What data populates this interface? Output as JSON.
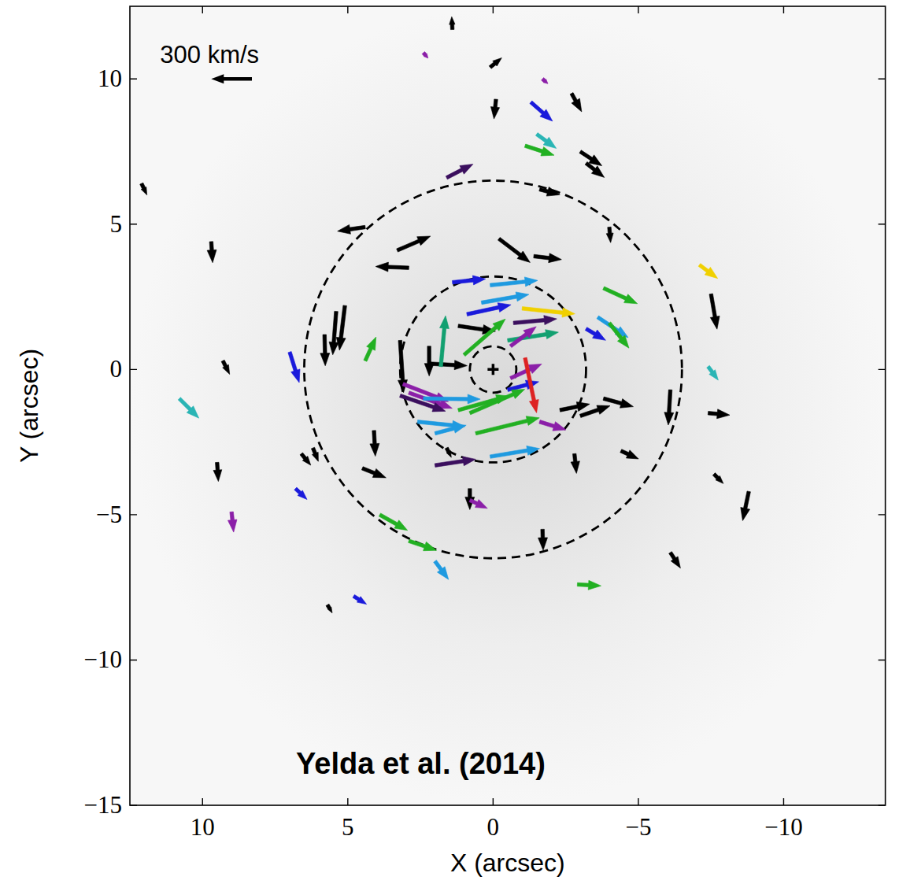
{
  "chart_data": {
    "type": "quiver",
    "annotation": "Yelda et al. (2014)",
    "x_label": "X (arcsec)",
    "y_label": "Y (arcsec)",
    "xlim": [
      12.5,
      -13.5
    ],
    "ylim": [
      -15,
      12.5
    ],
    "xticks": [
      10,
      5,
      0,
      {
        "value": -5,
        "label": "−5"
      },
      {
        "value": -10,
        "label": "−10"
      }
    ],
    "yticks": [
      {
        "value": -15,
        "label": "−15"
      },
      {
        "value": -10,
        "label": "−10"
      },
      {
        "value": -5,
        "label": "−5"
      },
      0,
      5,
      10
    ],
    "reference_arrow": {
      "value": 300,
      "label": "300 km/s",
      "x": 8.3,
      "y": 10.0
    },
    "circle_radii": [
      0.8,
      3.2,
      6.5
    ],
    "center": [
      0,
      0
    ],
    "x": [
      1.4,
      2.4,
      0.1,
      -1.7,
      -1.3,
      -2.7,
      -0.1,
      -1.5,
      -1.1,
      -3.0,
      -3.2,
      1.6,
      12.1,
      9.7,
      4.4,
      3.3,
      -0.2,
      -1.4,
      -4.0,
      2.9,
      1.4,
      0.1,
      0.4,
      0.9,
      -1.0,
      -3.8,
      1.2,
      -0.7,
      -3.6,
      -4.0,
      -3.2,
      1.0,
      -0.5,
      -0.6,
      1.8,
      2.2,
      3.2,
      4.4,
      7.0,
      5.1,
      5.4,
      5.8,
      9.3,
      10.8,
      9.5,
      6.8,
      9.0,
      6.2,
      4.5,
      4.1,
      3.1,
      2.9,
      3.2,
      2.4,
      -0.5,
      -0.6,
      -1.1,
      0.8,
      1.2,
      2.6,
      2.0,
      2.0,
      0.1,
      0.6,
      -1.6,
      2.2,
      -2.3,
      -3.0,
      -3.8,
      -6.1,
      -7.4,
      -7.6,
      -8.8,
      -7.5,
      -7.1,
      -7.4,
      0.8,
      0.8,
      3.9,
      2.9,
      2.0,
      -1.7,
      -6.1,
      -2.9,
      4.8,
      5.7,
      -1.6,
      -2.8,
      -4.4,
      6.6,
      1.6
    ],
    "y": [
      11.7,
      10.9,
      10.4,
      10.0,
      9.2,
      9.5,
      9.3,
      8.1,
      7.7,
      7.5,
      7.1,
      6.6,
      6.4,
      4.4,
      4.9,
      4.1,
      4.5,
      3.9,
      4.9,
      3.5,
      3.0,
      2.9,
      2.3,
      1.9,
      2.1,
      2.8,
      1.5,
      1.6,
      1.8,
      1.6,
      1.4,
      0.5,
      1.0,
      0.8,
      0.1,
      0.8,
      1.0,
      0.3,
      0.6,
      2.2,
      2.0,
      1.2,
      0.3,
      -1.0,
      -3.2,
      -4.1,
      -4.9,
      -2.7,
      -3.4,
      -2.1,
      -0.5,
      -0.8,
      -0.9,
      -1.0,
      -0.7,
      -0.3,
      0.4,
      -1.5,
      -1.4,
      -1.8,
      -2.2,
      -3.3,
      -3.0,
      -2.2,
      -1.8,
      0.2,
      -1.4,
      -1.6,
      -1.0,
      -0.7,
      -1.5,
      -3.6,
      -4.2,
      2.6,
      3.6,
      0.1,
      -4.1,
      -4.5,
      -5.0,
      -5.9,
      -6.6,
      -5.5,
      -6.3,
      -7.4,
      -7.8,
      -8.1,
      6.2,
      -2.9,
      -2.8,
      -2.9,
      -2.7
    ],
    "vx": [
      5,
      -35,
      -85,
      -40,
      -160,
      -75,
      15,
      -145,
      -215,
      -160,
      -135,
      -195,
      -40,
      -10,
      205,
      -245,
      -230,
      -205,
      -10,
      245,
      -245,
      -350,
      -350,
      -325,
      -390,
      -250,
      -275,
      -320,
      -225,
      -145,
      -145,
      -305,
      -375,
      -190,
      -35,
      0,
      -25,
      -80,
      -70,
      40,
      25,
      -5,
      -50,
      -145,
      -10,
      -85,
      -15,
      -40,
      -175,
      -10,
      -335,
      -320,
      -335,
      -420,
      -230,
      -230,
      -85,
      -405,
      -375,
      -350,
      -230,
      -300,
      -365,
      -470,
      -195,
      -280,
      -220,
      -220,
      -220,
      15,
      -160,
      -70,
      45,
      -45,
      -135,
      -75,
      0,
      -130,
      -205,
      -205,
      -100,
      -5,
      -75,
      -175,
      -95,
      -35,
      -150,
      -15,
      -130,
      -70,
      -35
    ],
    "vy": [
      95,
      -40,
      70,
      -35,
      -140,
      -135,
      -145,
      -105,
      -70,
      -105,
      -105,
      100,
      -85,
      -155,
      -30,
      105,
      -175,
      -25,
      -115,
      10,
      25,
      35,
      60,
      70,
      -40,
      -115,
      -40,
      30,
      -150,
      -185,
      -85,
      265,
      60,
      145,
      375,
      -220,
      -385,
      175,
      -225,
      -330,
      -320,
      -230,
      -100,
      -145,
      -140,
      -80,
      -150,
      -100,
      -70,
      -190,
      -130,
      -115,
      -115,
      -5,
      60,
      105,
      -405,
      175,
      105,
      -35,
      60,
      45,
      60,
      115,
      -60,
      -15,
      45,
      75,
      -60,
      -260,
      -15,
      -70,
      -215,
      -260,
      -100,
      -100,
      -155,
      -60,
      -115,
      -70,
      -135,
      -155,
      -115,
      -10,
      -60,
      -60,
      -40,
      -145,
      -60,
      -85,
      -70
    ],
    "colors": [
      "#000000",
      "#8b1fa8",
      "#000000",
      "#8b1fa8",
      "#1a1adb",
      "#000000",
      "#000000",
      "#2ab5b5",
      "#22b022",
      "#000000",
      "#000000",
      "#3b0f5e",
      "#000000",
      "#000000",
      "#000000",
      "#000000",
      "#000000",
      "#000000",
      "#000000",
      "#000000",
      "#1a1adb",
      "#1f9ae0",
      "#1f9ae0",
      "#1a1adb",
      "#f0d000",
      "#22b022",
      "#000000",
      "#3b0f5e",
      "#1f9ae0",
      "#22b022",
      "#1a1adb",
      "#22b022",
      "#12a070",
      "#8b1fa8",
      "#12a070",
      "#000000",
      "#000000",
      "#22b022",
      "#1a1adb",
      "#000000",
      "#000000",
      "#000000",
      "#000000",
      "#2ab5b5",
      "#000000",
      "#1a1adb",
      "#8b1fa8",
      "#000000",
      "#000000",
      "#000000",
      "#8b1fa8",
      "#8b1fa8",
      "#3b0f5e",
      "#1f9ae0",
      "#1a1adb",
      "#8b1fa8",
      "#dd2222",
      "#22b022",
      "#22b022",
      "#1f9ae0",
      "#1f9ae0",
      "#3b0f5e",
      "#1f9ae0",
      "#22b022",
      "#8b1fa8",
      "#000000",
      "#000000",
      "#000000",
      "#000000",
      "#000000",
      "#000000",
      "#000000",
      "#000000",
      "#000000",
      "#f0d000",
      "#2ab5b5",
      "#000000",
      "#8b1fa8",
      "#22b022",
      "#22b022",
      "#1f9ae0",
      "#000000",
      "#000000",
      "#22b022",
      "#1a1adb",
      "#000000",
      "#000000",
      "#000000",
      "#000000",
      "#000000",
      "#000000"
    ]
  }
}
